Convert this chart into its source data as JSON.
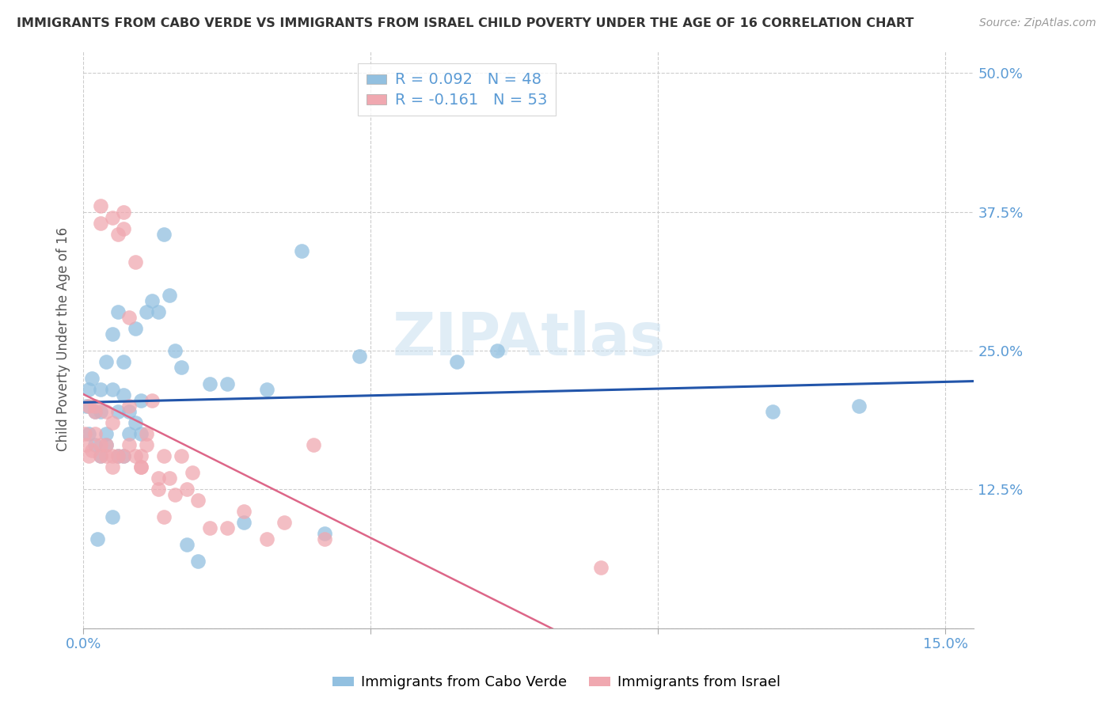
{
  "title": "IMMIGRANTS FROM CABO VERDE VS IMMIGRANTS FROM ISRAEL CHILD POVERTY UNDER THE AGE OF 16 CORRELATION CHART",
  "source": "Source: ZipAtlas.com",
  "ylabel": "Child Poverty Under the Age of 16",
  "cabo_verde_label": "Immigrants from Cabo Verde",
  "israel_label": "Immigrants from Israel",
  "legend_R_cabo": "R = 0.092",
  "legend_N_cabo": "N = 48",
  "legend_R_israel": "R = -0.161",
  "legend_N_israel": "N = 53",
  "cabo_verde_color": "#92c0e0",
  "israel_color": "#f0a8b0",
  "cabo_verde_line_color": "#2255aa",
  "israel_line_color": "#dd6688",
  "xlim": [
    0.0,
    0.155
  ],
  "ylim": [
    0.0,
    0.52
  ],
  "x_ticks": [
    0.0,
    0.05,
    0.1,
    0.15
  ],
  "y_ticks": [
    0.0,
    0.125,
    0.25,
    0.375,
    0.5
  ],
  "cabo_verde_x": [
    0.0005,
    0.001,
    0.001,
    0.0015,
    0.002,
    0.002,
    0.0025,
    0.003,
    0.003,
    0.003,
    0.004,
    0.004,
    0.004,
    0.005,
    0.005,
    0.005,
    0.006,
    0.006,
    0.006,
    0.007,
    0.007,
    0.007,
    0.008,
    0.008,
    0.009,
    0.009,
    0.01,
    0.01,
    0.011,
    0.012,
    0.013,
    0.014,
    0.015,
    0.016,
    0.017,
    0.018,
    0.02,
    0.022,
    0.025,
    0.028,
    0.032,
    0.038,
    0.042,
    0.048,
    0.065,
    0.072,
    0.12,
    0.135
  ],
  "cabo_verde_y": [
    0.2,
    0.215,
    0.175,
    0.225,
    0.195,
    0.165,
    0.08,
    0.155,
    0.215,
    0.195,
    0.165,
    0.24,
    0.175,
    0.1,
    0.215,
    0.265,
    0.285,
    0.195,
    0.155,
    0.24,
    0.155,
    0.21,
    0.175,
    0.195,
    0.27,
    0.185,
    0.175,
    0.205,
    0.285,
    0.295,
    0.285,
    0.355,
    0.3,
    0.25,
    0.235,
    0.075,
    0.06,
    0.22,
    0.22,
    0.095,
    0.215,
    0.34,
    0.085,
    0.245,
    0.24,
    0.25,
    0.195,
    0.2
  ],
  "israel_x": [
    0.0003,
    0.0005,
    0.001,
    0.001,
    0.0015,
    0.002,
    0.002,
    0.002,
    0.003,
    0.003,
    0.003,
    0.003,
    0.004,
    0.004,
    0.004,
    0.005,
    0.005,
    0.005,
    0.005,
    0.006,
    0.006,
    0.007,
    0.007,
    0.007,
    0.008,
    0.008,
    0.008,
    0.009,
    0.009,
    0.01,
    0.01,
    0.01,
    0.011,
    0.011,
    0.012,
    0.013,
    0.013,
    0.014,
    0.014,
    0.015,
    0.016,
    0.017,
    0.018,
    0.019,
    0.02,
    0.022,
    0.025,
    0.028,
    0.032,
    0.035,
    0.04,
    0.042,
    0.09
  ],
  "israel_y": [
    0.175,
    0.165,
    0.2,
    0.155,
    0.16,
    0.195,
    0.175,
    0.2,
    0.165,
    0.38,
    0.365,
    0.155,
    0.165,
    0.155,
    0.195,
    0.145,
    0.185,
    0.155,
    0.37,
    0.355,
    0.155,
    0.375,
    0.36,
    0.155,
    0.28,
    0.2,
    0.165,
    0.33,
    0.155,
    0.155,
    0.145,
    0.145,
    0.165,
    0.175,
    0.205,
    0.125,
    0.135,
    0.155,
    0.1,
    0.135,
    0.12,
    0.155,
    0.125,
    0.14,
    0.115,
    0.09,
    0.09,
    0.105,
    0.08,
    0.095,
    0.165,
    0.08,
    0.055
  ]
}
